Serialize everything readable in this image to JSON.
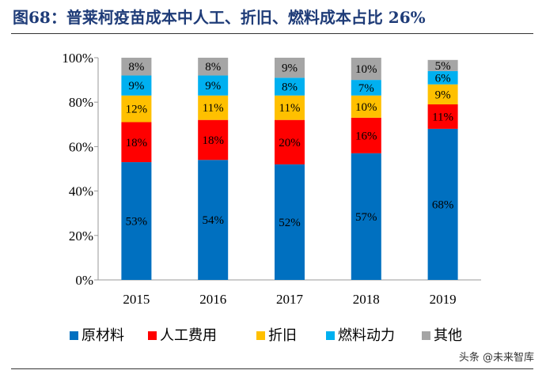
{
  "title": "图68：普莱柯疫苗成本中人工、折旧、燃料成本占比 26%",
  "watermark": "头条 @未来智库",
  "chart_data": {
    "type": "bar",
    "stacked": true,
    "percent": true,
    "title": "图68：普莱柯疫苗成本中人工、折旧、燃料成本占比 26%",
    "categories": [
      "2015",
      "2016",
      "2017",
      "2018",
      "2019"
    ],
    "ylim": [
      0,
      100
    ],
    "yticks": [
      "0%",
      "20%",
      "40%",
      "60%",
      "80%",
      "100%"
    ],
    "grid": false,
    "legend": "bottom",
    "series": [
      {
        "name": "原材料",
        "color": "#0070c0",
        "values": [
          53,
          54,
          52,
          57,
          68
        ],
        "labels": [
          "53%",
          "54%",
          "52%",
          "57%",
          "68%"
        ]
      },
      {
        "name": "人工费用",
        "color": "#ff0000",
        "values": [
          18,
          18,
          20,
          16,
          11
        ],
        "labels": [
          "18%",
          "18%",
          "20%",
          "16%",
          "11%"
        ]
      },
      {
        "name": "折旧",
        "color": "#ffc000",
        "values": [
          12,
          11,
          11,
          10,
          9
        ],
        "labels": [
          "12%",
          "11%",
          "11%",
          "10%",
          "9%"
        ]
      },
      {
        "name": "燃料动力",
        "color": "#00b0f0",
        "values": [
          9,
          9,
          8,
          7,
          6
        ],
        "labels": [
          "9%",
          "9%",
          "8%",
          "7%",
          "6%"
        ]
      },
      {
        "name": "其他",
        "color": "#a5a5a5",
        "values": [
          8,
          8,
          9,
          10,
          5
        ],
        "labels": [
          "8%",
          "8%",
          "9%",
          "10%",
          "5%"
        ]
      }
    ]
  }
}
